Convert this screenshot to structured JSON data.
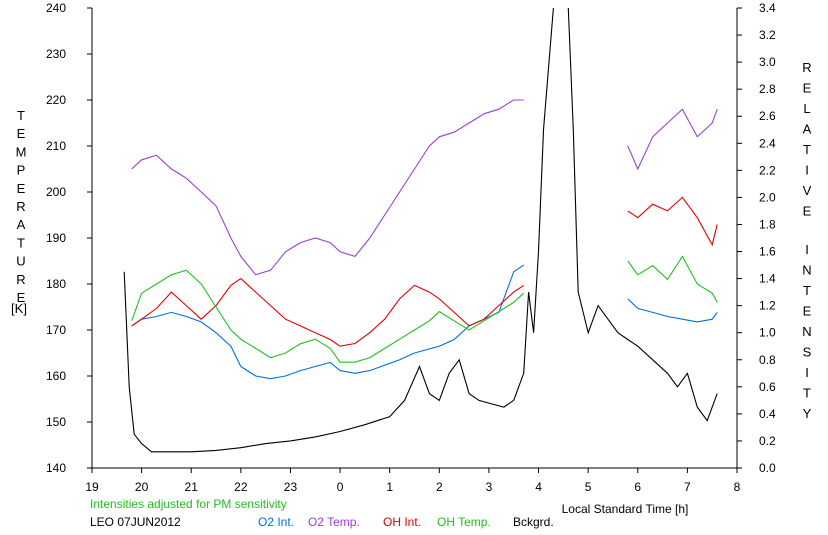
{
  "chart_data": {
    "type": "line",
    "left_axis": {
      "label": "TEMPERATURE",
      "unit": "[K]",
      "ylim": [
        140,
        240
      ],
      "ticks": [
        140,
        150,
        160,
        170,
        180,
        190,
        200,
        210,
        220,
        230,
        240
      ]
    },
    "right_axis": {
      "label": "RELATIVE INTENSITY",
      "ylim": [
        0.0,
        3.4
      ],
      "ticks": [
        "0.0",
        "0.2",
        "0.4",
        "0.6",
        "0.8",
        "1.0",
        "1.2",
        "1.4",
        "1.6",
        "1.8",
        "2.0",
        "2.2",
        "2.4",
        "2.6",
        "2.8",
        "3.0",
        "3.2",
        "3.4"
      ]
    },
    "x_axis": {
      "label": "Local Standard Time [h]",
      "xlim": [
        19,
        32
      ],
      "tick_labels": [
        "19",
        "20",
        "21",
        "22",
        "23",
        "0",
        "1",
        "2",
        "3",
        "4",
        "5",
        "6",
        "7",
        "8"
      ]
    },
    "note": "Intensities adjusted for PM sensitivity",
    "station": "LEO 07JUN2012",
    "series": [
      {
        "name": "O2 Int.",
        "axis": "right",
        "color": "#0070e0",
        "x": [
          19.8,
          20.0,
          20.3,
          20.6,
          20.9,
          21.2,
          21.5,
          21.8,
          22.0,
          22.3,
          22.6,
          22.9,
          23.2,
          23.5,
          23.8,
          24.0,
          24.3,
          24.6,
          24.9,
          25.2,
          25.5,
          25.8,
          26.0,
          26.3,
          26.6,
          26.9,
          27.2,
          27.5,
          27.7
        ],
        "values": [
          1.05,
          1.1,
          1.12,
          1.15,
          1.12,
          1.08,
          1.0,
          0.9,
          0.75,
          0.68,
          0.66,
          0.68,
          0.72,
          0.75,
          0.78,
          0.72,
          0.7,
          0.72,
          0.76,
          0.8,
          0.85,
          0.88,
          0.9,
          0.95,
          1.05,
          1.1,
          1.15,
          1.45,
          1.5
        ]
      },
      {
        "name": "O2 Temp.",
        "axis": "left",
        "color": "#9b40d0",
        "x": [
          19.8,
          20.0,
          20.3,
          20.6,
          20.9,
          21.2,
          21.5,
          21.8,
          22.0,
          22.3,
          22.6,
          22.9,
          23.2,
          23.5,
          23.8,
          24.0,
          24.3,
          24.6,
          24.9,
          25.2,
          25.5,
          25.8,
          26.0,
          26.3,
          26.6,
          26.9,
          27.2,
          27.5,
          27.7
        ],
        "values": [
          205,
          207,
          208,
          205,
          203,
          200,
          197,
          190,
          186,
          182,
          183,
          187,
          189,
          190,
          189,
          187,
          186,
          190,
          195,
          200,
          205,
          210,
          212,
          213,
          215,
          217,
          218,
          220,
          220
        ]
      },
      {
        "name": "OH Int.",
        "axis": "right",
        "color": "#e00000",
        "x": [
          19.8,
          20.0,
          20.3,
          20.6,
          20.9,
          21.2,
          21.5,
          21.8,
          22.0,
          22.3,
          22.6,
          22.9,
          23.2,
          23.5,
          23.8,
          24.0,
          24.3,
          24.6,
          24.9,
          25.2,
          25.5,
          25.8,
          26.0,
          26.3,
          26.6,
          26.9,
          27.2,
          27.5,
          27.7
        ],
        "values": [
          1.05,
          1.1,
          1.18,
          1.3,
          1.2,
          1.1,
          1.2,
          1.35,
          1.4,
          1.3,
          1.2,
          1.1,
          1.05,
          1.0,
          0.95,
          0.9,
          0.92,
          1.0,
          1.1,
          1.25,
          1.35,
          1.3,
          1.25,
          1.15,
          1.05,
          1.1,
          1.2,
          1.3,
          1.35
        ]
      },
      {
        "name": "OH Temp.",
        "axis": "left",
        "color": "#20c020",
        "x": [
          19.8,
          20.0,
          20.3,
          20.6,
          20.9,
          21.2,
          21.5,
          21.8,
          22.0,
          22.3,
          22.6,
          22.9,
          23.2,
          23.5,
          23.8,
          24.0,
          24.3,
          24.6,
          24.9,
          25.2,
          25.5,
          25.8,
          26.0,
          26.3,
          26.6,
          26.9,
          27.2,
          27.5,
          27.7
        ],
        "values": [
          172,
          178,
          180,
          182,
          183,
          180,
          175,
          170,
          168,
          166,
          164,
          165,
          167,
          168,
          166,
          163,
          163,
          164,
          166,
          168,
          170,
          172,
          174,
          172,
          170,
          172,
          174,
          176,
          178
        ]
      },
      {
        "name": "Bckgrd.",
        "axis": "right",
        "color": "#000000",
        "x": [
          19.65,
          19.75,
          19.85,
          20.0,
          20.2,
          20.5,
          21.0,
          21.5,
          22.0,
          22.5,
          23.0,
          23.5,
          24.0,
          24.5,
          25.0,
          25.3,
          25.6,
          25.8,
          26.0,
          26.2,
          26.4,
          26.6,
          26.8,
          27.0,
          27.3,
          27.5,
          27.7,
          27.8,
          27.9,
          28.0,
          28.1,
          28.3
        ],
        "values": [
          1.45,
          0.6,
          0.25,
          0.18,
          0.12,
          0.12,
          0.12,
          0.13,
          0.15,
          0.18,
          0.2,
          0.23,
          0.27,
          0.32,
          0.38,
          0.5,
          0.75,
          0.55,
          0.5,
          0.7,
          0.8,
          0.55,
          0.5,
          0.48,
          0.45,
          0.5,
          0.7,
          1.3,
          1.0,
          1.6,
          2.5,
          3.4
        ]
      },
      {
        "name": "Bckgrd.",
        "axis": "right",
        "color": "#000000",
        "x": [
          28.6,
          28.7,
          28.8,
          29.0,
          29.2,
          29.4,
          29.6,
          29.8,
          30.0,
          30.3,
          30.6,
          30.8,
          31.0,
          31.2,
          31.4,
          31.6
        ],
        "values": [
          3.4,
          2.5,
          1.3,
          1.0,
          1.2,
          1.1,
          1.0,
          0.95,
          0.9,
          0.8,
          0.7,
          0.6,
          0.7,
          0.45,
          0.35,
          0.55
        ]
      },
      {
        "name": "O2 Int.",
        "axis": "right",
        "color": "#0070e0",
        "x": [
          29.8,
          30.0,
          30.3,
          30.6,
          30.9,
          31.2,
          31.5,
          31.6
        ],
        "values": [
          1.25,
          1.18,
          1.15,
          1.12,
          1.1,
          1.08,
          1.1,
          1.15
        ]
      },
      {
        "name": "O2 Temp.",
        "axis": "left",
        "color": "#9b40d0",
        "x": [
          29.8,
          30.0,
          30.3,
          30.6,
          30.9,
          31.2,
          31.5,
          31.6
        ],
        "values": [
          210,
          205,
          212,
          215,
          218,
          212,
          215,
          218
        ]
      },
      {
        "name": "OH Int.",
        "axis": "right",
        "color": "#e00000",
        "x": [
          29.8,
          30.0,
          30.3,
          30.6,
          30.9,
          31.2,
          31.5,
          31.6
        ],
        "values": [
          1.9,
          1.85,
          1.95,
          1.9,
          2.0,
          1.85,
          1.65,
          1.8
        ]
      },
      {
        "name": "OH Temp.",
        "axis": "left",
        "color": "#20c020",
        "x": [
          29.8,
          30.0,
          30.3,
          30.6,
          30.9,
          31.2,
          31.5,
          31.6
        ],
        "values": [
          185,
          182,
          184,
          181,
          186,
          180,
          178,
          176
        ]
      }
    ],
    "grid": false,
    "legend_position": "bottom"
  },
  "legend": {
    "o2_int": "O2 Int.",
    "o2_temp": "O2 Temp.",
    "oh_int": "OH Int.",
    "oh_temp": "OH Temp.",
    "bckgrd": "Bckgrd."
  }
}
